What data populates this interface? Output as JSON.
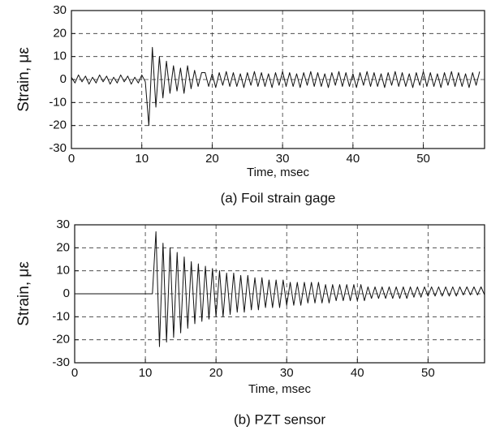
{
  "chart_data": [
    {
      "type": "line",
      "caption": "(a) Foil strain gage",
      "xlabel": "Time, msec",
      "ylabel": "Strain, με",
      "xlim": [
        0,
        58.7
      ],
      "ylim": [
        -30,
        30
      ],
      "xticks": [
        0,
        10,
        20,
        30,
        40,
        50
      ],
      "yticks": [
        -30,
        -20,
        -10,
        0,
        10,
        20,
        30
      ],
      "grid": true,
      "x": [
        0,
        0.5,
        1,
        1.5,
        2,
        2.5,
        3,
        3.5,
        4,
        4.5,
        5,
        5.5,
        6,
        6.5,
        7,
        7.5,
        8,
        8.5,
        9,
        9.5,
        10,
        10.5,
        11,
        11.5,
        12,
        12.5,
        13,
        13.5,
        14,
        14.5,
        15,
        15.5,
        16,
        16.5,
        17,
        17.5,
        18,
        18.5,
        19,
        19.5,
        20,
        20.5,
        21,
        21.5,
        22,
        22.5,
        23,
        23.5,
        24,
        24.5,
        25,
        25.5,
        26,
        26.5,
        27,
        27.5,
        28,
        28.5,
        29,
        29.5,
        30,
        30.5,
        31,
        31.5,
        32,
        32.5,
        33,
        33.5,
        34,
        34.5,
        35,
        35.5,
        36,
        36.5,
        37,
        37.5,
        38,
        38.5,
        39,
        39.5,
        40,
        40.5,
        41,
        41.5,
        42,
        42.5,
        43,
        43.5,
        44,
        44.5,
        45,
        45.5,
        46,
        46.5,
        47,
        47.5,
        48,
        48.5,
        49,
        49.5,
        50,
        50.5,
        51,
        51.5,
        52,
        52.5,
        53,
        53.5,
        54,
        54.5,
        55,
        55.5,
        56,
        56.5,
        57,
        57.5,
        58
      ],
      "series": [
        {
          "color": "#111111",
          "values": [
            1,
            -1.5,
            2,
            -1,
            1.5,
            -2,
            1,
            -1.5,
            2,
            -1,
            1.5,
            -2,
            1,
            -1.5,
            2,
            -1,
            1.5,
            -2,
            1,
            -1.5,
            2,
            -1,
            -20,
            14,
            -12,
            10,
            -8,
            8,
            -6,
            6,
            -5,
            5,
            -6,
            6,
            -4,
            4,
            -3,
            3,
            3,
            -3,
            2.5,
            -3.5,
            3,
            -2.5,
            3.5,
            -3,
            3,
            -3,
            2.5,
            -3.5,
            3,
            -2.5,
            3.5,
            -3,
            3,
            -3,
            2.5,
            -3.5,
            3,
            -2.5,
            3.5,
            -3,
            3,
            -3,
            2.5,
            -3.5,
            3,
            -2.5,
            3.5,
            -3,
            3,
            -3,
            2.5,
            -3.5,
            3,
            -2.5,
            3.5,
            -3,
            3,
            -3,
            2.5,
            -3.5,
            3,
            -2.5,
            3.5,
            -3,
            3,
            -3,
            2.5,
            -3.5,
            3,
            -2.5,
            3.5,
            -3,
            3,
            -3,
            2.5,
            -3.5,
            3,
            -2.5,
            3.5,
            -3,
            3,
            -3,
            2.5,
            -3.5,
            3,
            -2.5,
            3.5,
            -3,
            3,
            -3,
            2.5,
            -3.5,
            3,
            -2.5,
            3.5
          ]
        }
      ]
    },
    {
      "type": "line",
      "caption": "(b) PZT sensor",
      "xlabel": "Time, msec",
      "ylabel": "Strain, με",
      "xlim": [
        0,
        58
      ],
      "ylim": [
        -30,
        30
      ],
      "xticks": [
        0,
        10,
        20,
        30,
        40,
        50
      ],
      "yticks": [
        -30,
        -20,
        -10,
        0,
        10,
        20,
        30
      ],
      "grid": true,
      "x": [
        0,
        0.5,
        1,
        1.5,
        2,
        2.5,
        3,
        3.5,
        4,
        4.5,
        5,
        5.5,
        6,
        6.5,
        7,
        7.5,
        8,
        8.5,
        9,
        9.5,
        10,
        10.5,
        11,
        11.5,
        12,
        12.5,
        13,
        13.5,
        14,
        14.5,
        15,
        15.5,
        16,
        16.5,
        17,
        17.5,
        18,
        18.5,
        19,
        19.5,
        20,
        20.5,
        21,
        21.5,
        22,
        22.5,
        23,
        23.5,
        24,
        24.5,
        25,
        25.5,
        26,
        26.5,
        27,
        27.5,
        28,
        28.5,
        29,
        29.5,
        30,
        30.5,
        31,
        31.5,
        32,
        32.5,
        33,
        33.5,
        34,
        34.5,
        35,
        35.5,
        36,
        36.5,
        37,
        37.5,
        38,
        38.5,
        39,
        39.5,
        40,
        40.5,
        41,
        41.5,
        42,
        42.5,
        43,
        43.5,
        44,
        44.5,
        45,
        45.5,
        46,
        46.5,
        47,
        47.5,
        48,
        48.5,
        49,
        49.5,
        50,
        50.5,
        51,
        51.5,
        52,
        52.5,
        53,
        53.5,
        54,
        54.5,
        55,
        55.5,
        56,
        56.5,
        57,
        57.5,
        58
      ],
      "series": [
        {
          "color": "#111111",
          "values": [
            0,
            0,
            0,
            0,
            0,
            0,
            0,
            0,
            0,
            0,
            0,
            0,
            0,
            0,
            0,
            0,
            0,
            0,
            0,
            0,
            0,
            0,
            0,
            27,
            -23,
            22,
            -21,
            20,
            -19,
            18,
            -17,
            16,
            -15,
            14,
            -13,
            13,
            -12,
            12,
            -11,
            11,
            -10,
            10,
            -10,
            9,
            -9,
            9,
            -8,
            8,
            -8,
            8,
            -7,
            7,
            -7,
            7,
            -6,
            6,
            -6,
            6,
            -6,
            6,
            -5,
            5,
            -5,
            5,
            -5,
            5,
            -4,
            5,
            -4,
            5,
            -4,
            4,
            -4,
            4,
            -3,
            4,
            -3,
            4,
            -3,
            4,
            -3,
            4,
            -3,
            3,
            -2,
            3,
            -2,
            3,
            -2,
            3,
            -2,
            3,
            -2,
            3,
            -2,
            3,
            -1.5,
            3,
            -1.5,
            3,
            -1,
            3,
            -1,
            3,
            -1,
            3,
            -1,
            3,
            -1,
            3,
            -0.5,
            3,
            -0.5,
            3,
            -0.5,
            3,
            -0.5
          ]
        }
      ]
    }
  ]
}
